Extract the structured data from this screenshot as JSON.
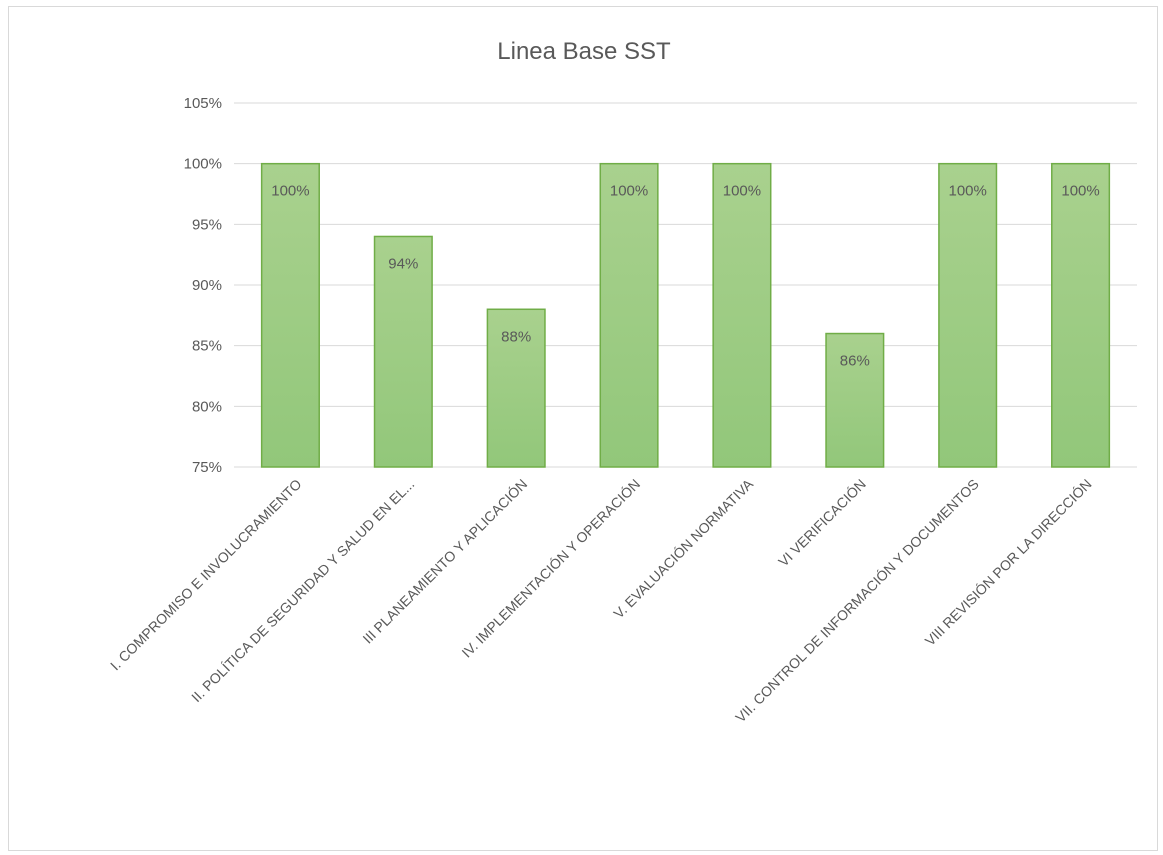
{
  "chart_data": {
    "type": "bar",
    "title": "Linea Base SST",
    "categories": [
      "I. COMPROMISO E INVOLUCRAMIENTO",
      "II. POLÍTICA DE SEGURIDAD Y SALUD EN EL...",
      "III PLANEAMIENTO Y APLICACIÓN",
      "IV. IMPLEMENTACIÓN Y OPERACIÓN",
      "V. EVALUACIÓN NORMATIVA",
      "VI VERIFICACIÓN",
      "VII. CONTROL DE INFORMACIÓN Y DOCUMENTOS",
      "VIII REVISIÓN POR LA DIRECCIÓN"
    ],
    "values": [
      100,
      94,
      88,
      100,
      100,
      86,
      100,
      100
    ],
    "data_labels": [
      "100%",
      "94%",
      "88%",
      "100%",
      "100%",
      "86%",
      "100%",
      "100%"
    ],
    "ylim": [
      75,
      105
    ],
    "yticks": [
      75,
      80,
      85,
      90,
      95,
      100,
      105
    ],
    "ytick_labels": [
      "75%",
      "80%",
      "85%",
      "90%",
      "95%",
      "100%",
      "105%"
    ],
    "grid": true,
    "legend": "none",
    "colors": {
      "bar_fill_top": "#a9d18e",
      "bar_fill_bottom": "#92c77a",
      "bar_border": "#70ad47",
      "grid": "#d9d9d9",
      "text": "#595959"
    }
  }
}
